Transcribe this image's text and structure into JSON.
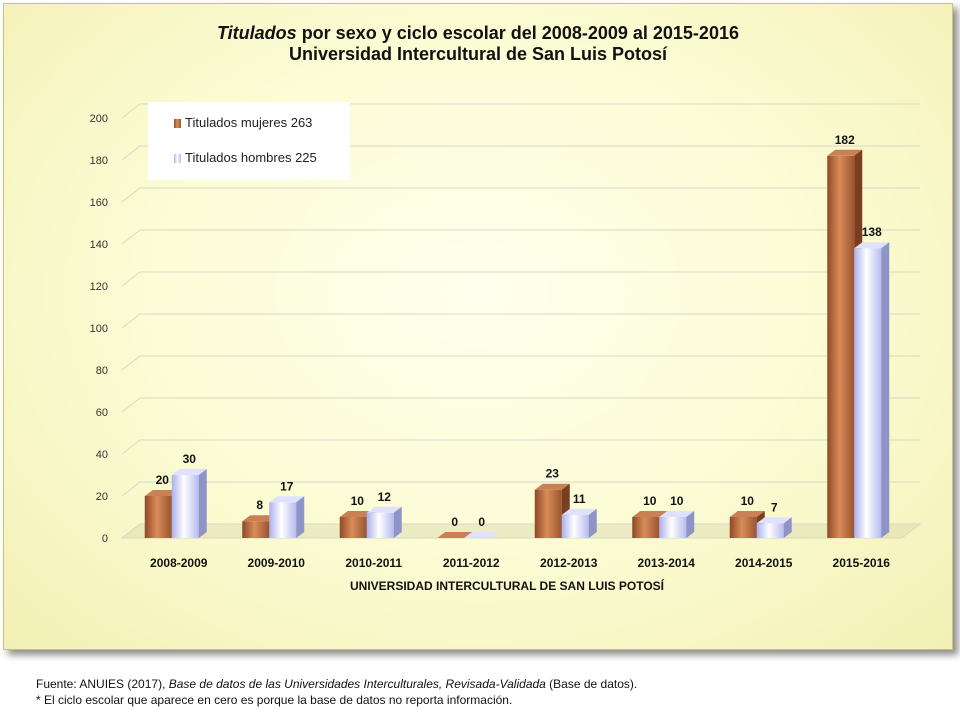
{
  "chart_data": {
    "type": "bar",
    "title_italic": "Titulados",
    "title_rest": " por sexo y ciclo escolar del 2008-2009 al 2015-2016",
    "subtitle": "Universidad Intercultural de San Luis Potosí",
    "xlabel": "UNIVERSIDAD INTERCULTURAL DE SAN LUIS POTOSÍ",
    "ylabel": "",
    "ylim": [
      0,
      200
    ],
    "yticks": [
      0,
      20,
      40,
      60,
      80,
      100,
      120,
      140,
      160,
      180,
      200
    ],
    "grid": true,
    "legend_position": "top-left",
    "categories": [
      "2008-2009",
      "2009-2010",
      "2010-2011",
      "2011-2012",
      "2012-2013",
      "2013-2014",
      "2014-2015",
      "2015-2016"
    ],
    "series": [
      {
        "name": "Titulados mujeres 263",
        "values": [
          20,
          8,
          10,
          0,
          23,
          10,
          10,
          182
        ],
        "color": "#b8683a"
      },
      {
        "name": "Titulados hombres 225",
        "values": [
          30,
          17,
          12,
          0,
          11,
          10,
          7,
          138
        ],
        "color": "#c8ccf8"
      }
    ]
  },
  "footer": {
    "line1_prefix": "Fuente: ANUIES (2017), ",
    "line1_italic": "Base de datos de las Universidades Interculturales, Revisada-Validada",
    "line1_suffix": " (Base de datos).",
    "line2": "* El ciclo escolar que aparece en cero es porque la base de datos no reporta información."
  }
}
